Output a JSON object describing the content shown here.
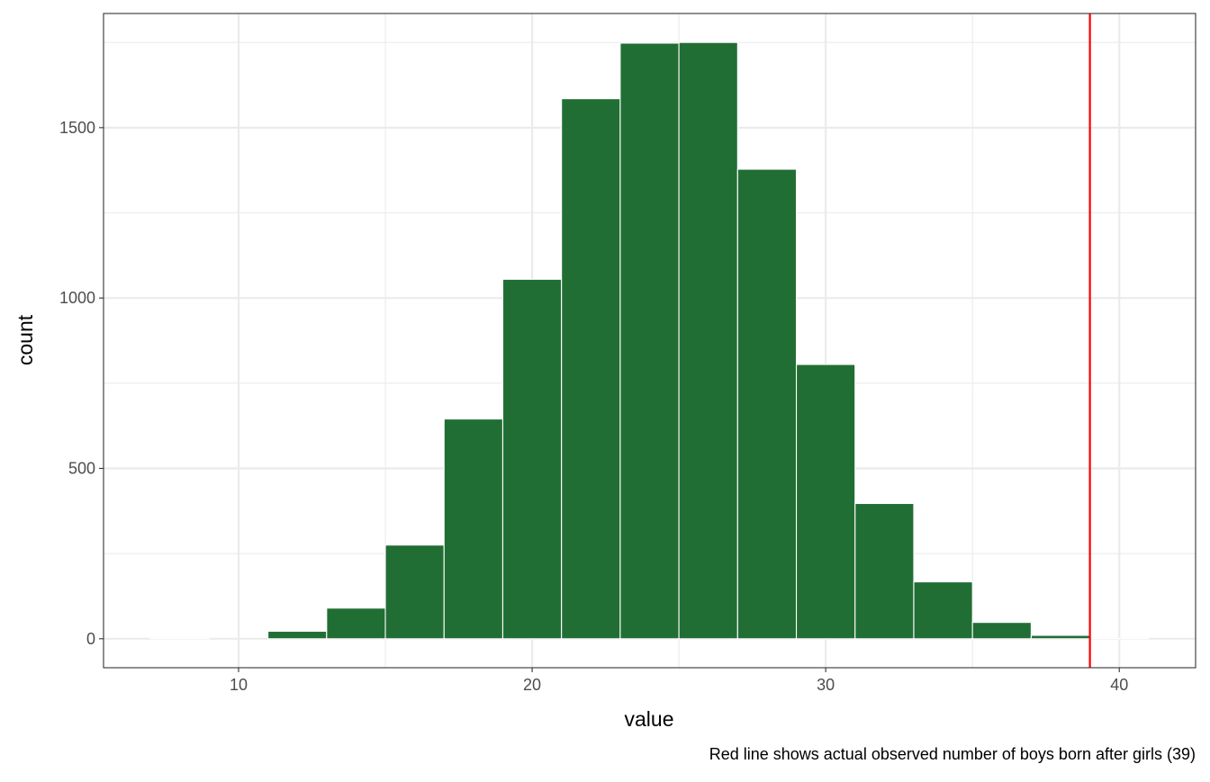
{
  "chart_data": {
    "type": "bar",
    "subtype": "histogram",
    "xlabel": "value",
    "ylabel": "count",
    "caption": "Red line shows actual observed number of boys born after girls (39)",
    "bin_width": 2,
    "bins": [
      {
        "x_start": 7,
        "x_end": 9,
        "count": 1
      },
      {
        "x_start": 9,
        "x_end": 11,
        "count": 0
      },
      {
        "x_start": 11,
        "x_end": 13,
        "count": 22
      },
      {
        "x_start": 13,
        "x_end": 15,
        "count": 90
      },
      {
        "x_start": 15,
        "x_end": 17,
        "count": 275
      },
      {
        "x_start": 17,
        "x_end": 19,
        "count": 645
      },
      {
        "x_start": 19,
        "x_end": 21,
        "count": 1055
      },
      {
        "x_start": 21,
        "x_end": 23,
        "count": 1585
      },
      {
        "x_start": 23,
        "x_end": 25,
        "count": 1748
      },
      {
        "x_start": 25,
        "x_end": 27,
        "count": 1750
      },
      {
        "x_start": 27,
        "x_end": 29,
        "count": 1378
      },
      {
        "x_start": 29,
        "x_end": 31,
        "count": 805
      },
      {
        "x_start": 31,
        "x_end": 33,
        "count": 397
      },
      {
        "x_start": 33,
        "x_end": 35,
        "count": 167
      },
      {
        "x_start": 35,
        "x_end": 37,
        "count": 48
      },
      {
        "x_start": 37,
        "x_end": 39,
        "count": 10
      },
      {
        "x_start": 39,
        "x_end": 41,
        "count": 1
      }
    ],
    "reference_line": {
      "x": 39,
      "color": "#ff0000"
    },
    "xlim": [
      5.4,
      42.6
    ],
    "ylim": [
      -85,
      1835
    ],
    "x_ticks": [
      10,
      20,
      30,
      40
    ],
    "y_ticks": [
      0,
      500,
      1000,
      1500
    ],
    "bar_color": "#216e34",
    "bar_edge_color": "#ffffff",
    "grid": true,
    "theme": "bw"
  }
}
